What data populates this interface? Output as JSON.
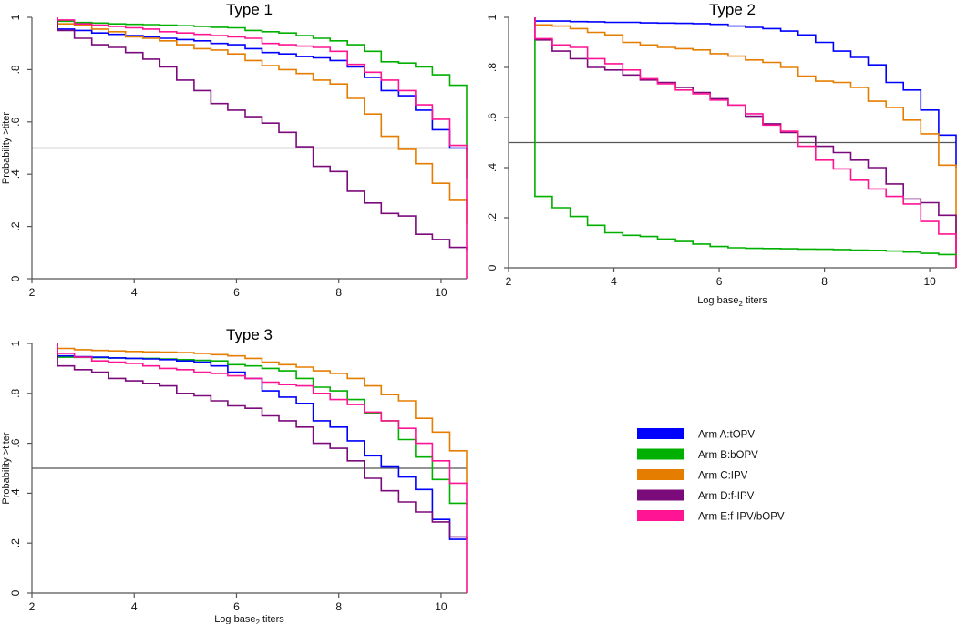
{
  "chart_data": {
    "type": "line",
    "step_x": [
      2.5,
      2.83,
      3.17,
      3.5,
      3.83,
      4.17,
      4.5,
      4.83,
      5.17,
      5.5,
      5.83,
      6.17,
      6.5,
      6.83,
      7.17,
      7.5,
      7.83,
      8.17,
      8.5,
      8.83,
      9.17,
      9.5,
      9.83,
      10.17,
      10.5
    ],
    "reference_line_y": 0.5,
    "legend": [
      {
        "id": "A",
        "label": "Arm A:tOPV",
        "color": "#0000ff"
      },
      {
        "id": "B",
        "label": "Arm B:bOPV",
        "color": "#00b000"
      },
      {
        "id": "C",
        "label": "Arm C:IPV",
        "color": "#e57e00"
      },
      {
        "id": "D",
        "label": "Arm D:f-IPV",
        "color": "#7b0a7b"
      },
      {
        "id": "E",
        "label": "Arm E:f-IPV/bOPV",
        "color": "#ff1493"
      }
    ],
    "panels": [
      {
        "title": "Type 1",
        "ylabel": "Probability >titer",
        "xlabel": "",
        "xlim": [
          2,
          10.5
        ],
        "ylim": [
          0,
          1
        ],
        "xticks": [
          "2",
          "4",
          "6",
          "8",
          "10"
        ],
        "yticks": [
          "0",
          ".2",
          ".4",
          ".6",
          ".8",
          "1"
        ],
        "series": [
          {
            "id": "B",
            "values": [
              0.985,
              0.98,
              0.978,
              0.975,
              0.973,
              0.972,
              0.97,
              0.968,
              0.965,
              0.962,
              0.96,
              0.95,
              0.945,
              0.94,
              0.93,
              0.92,
              0.91,
              0.895,
              0.87,
              0.83,
              0.825,
              0.81,
              0.78,
              0.74,
              0.62
            ],
            "end": 0.38
          },
          {
            "id": "A",
            "values": [
              0.955,
              0.95,
              0.94,
              0.935,
              0.93,
              0.925,
              0.92,
              0.915,
              0.91,
              0.9,
              0.895,
              0.88,
              0.865,
              0.86,
              0.85,
              0.845,
              0.835,
              0.81,
              0.77,
              0.72,
              0.7,
              0.645,
              0.57,
              0.5,
              0.49
            ],
            "end": 0.49
          },
          {
            "id": "C",
            "values": [
              0.975,
              0.97,
              0.955,
              0.945,
              0.925,
              0.92,
              0.91,
              0.895,
              0.88,
              0.875,
              0.86,
              0.835,
              0.815,
              0.8,
              0.785,
              0.76,
              0.745,
              0.69,
              0.63,
              0.545,
              0.495,
              0.44,
              0.365,
              0.3,
              0.215
            ],
            "end": 0.21
          },
          {
            "id": "D",
            "values": [
              0.95,
              0.92,
              0.895,
              0.885,
              0.865,
              0.84,
              0.81,
              0.76,
              0.72,
              0.67,
              0.645,
              0.62,
              0.595,
              0.56,
              0.505,
              0.43,
              0.41,
              0.335,
              0.29,
              0.25,
              0.24,
              0.17,
              0.15,
              0.12,
              0.11
            ],
            "end": 0.11
          },
          {
            "id": "E",
            "values": [
              0.99,
              0.975,
              0.97,
              0.965,
              0.96,
              0.955,
              0.945,
              0.94,
              0.935,
              0.93,
              0.925,
              0.92,
              0.9,
              0.895,
              0.89,
              0.885,
              0.87,
              0.82,
              0.79,
              0.76,
              0.72,
              0.665,
              0.61,
              0.51,
              0.385
            ],
            "end": 0.0
          }
        ]
      },
      {
        "title": "Type 2",
        "ylabel": "",
        "xlabel": "Log base2 titers",
        "xlim": [
          2,
          10.5
        ],
        "ylim": [
          0,
          1
        ],
        "xticks": [
          "2",
          "4",
          "6",
          "8",
          "10"
        ],
        "yticks": [
          "0",
          ".2",
          ".4",
          ".6",
          ".8",
          "1"
        ],
        "series": [
          {
            "id": "A",
            "values": [
              0.985,
              0.985,
              0.983,
              0.982,
              0.98,
              0.98,
              0.978,
              0.977,
              0.976,
              0.975,
              0.972,
              0.965,
              0.96,
              0.955,
              0.945,
              0.93,
              0.9,
              0.865,
              0.84,
              0.81,
              0.74,
              0.71,
              0.63,
              0.53,
              0.52
            ],
            "end": 0.4
          },
          {
            "id": "C",
            "values": [
              0.97,
              0.965,
              0.955,
              0.94,
              0.93,
              0.9,
              0.89,
              0.88,
              0.875,
              0.87,
              0.855,
              0.845,
              0.83,
              0.82,
              0.8,
              0.765,
              0.745,
              0.74,
              0.72,
              0.665,
              0.64,
              0.59,
              0.535,
              0.41,
              0.405
            ],
            "end": 0.0
          },
          {
            "id": "D",
            "values": [
              0.91,
              0.865,
              0.835,
              0.8,
              0.79,
              0.77,
              0.75,
              0.74,
              0.72,
              0.7,
              0.675,
              0.65,
              0.605,
              0.575,
              0.54,
              0.525,
              0.485,
              0.46,
              0.43,
              0.4,
              0.335,
              0.275,
              0.26,
              0.21,
              0.2
            ],
            "end": 0.0
          },
          {
            "id": "E",
            "values": [
              0.915,
              0.89,
              0.88,
              0.835,
              0.815,
              0.79,
              0.755,
              0.735,
              0.71,
              0.695,
              0.67,
              0.65,
              0.615,
              0.57,
              0.545,
              0.485,
              0.43,
              0.395,
              0.35,
              0.315,
              0.285,
              0.255,
              0.185,
              0.135,
              0.13
            ],
            "end": 0.0
          },
          {
            "id": "B",
            "values": [
              0.285,
              0.24,
              0.205,
              0.17,
              0.14,
              0.13,
              0.125,
              0.115,
              0.105,
              0.095,
              0.085,
              0.08,
              0.078,
              0.077,
              0.076,
              0.075,
              0.074,
              0.073,
              0.071,
              0.07,
              0.067,
              0.063,
              0.058,
              0.053,
              0.05
            ],
            "end": 0.05,
            "start": 0.91
          }
        ]
      },
      {
        "title": "Type 3",
        "ylabel": "Probability >titer",
        "xlabel": "Log base2 titers",
        "xlim": [
          2,
          10.5
        ],
        "ylim": [
          0,
          1
        ],
        "xticks": [
          "2",
          "4",
          "6",
          "8",
          "10"
        ],
        "yticks": [
          "0",
          ".2",
          ".4",
          ".6",
          ".8",
          "1"
        ],
        "series": [
          {
            "id": "C",
            "values": [
              0.98,
              0.975,
              0.972,
              0.97,
              0.968,
              0.966,
              0.965,
              0.963,
              0.96,
              0.955,
              0.95,
              0.94,
              0.925,
              0.915,
              0.905,
              0.89,
              0.88,
              0.86,
              0.83,
              0.795,
              0.77,
              0.7,
              0.645,
              0.57,
              0.565
            ],
            "end": 0.44
          },
          {
            "id": "B",
            "values": [
              0.945,
              0.944,
              0.943,
              0.942,
              0.94,
              0.94,
              0.938,
              0.935,
              0.932,
              0.93,
              0.915,
              0.91,
              0.9,
              0.89,
              0.86,
              0.825,
              0.81,
              0.775,
              0.72,
              0.69,
              0.615,
              0.545,
              0.455,
              0.36,
              0.355
            ],
            "end": 0.355
          },
          {
            "id": "A",
            "values": [
              0.95,
              0.947,
              0.945,
              0.942,
              0.94,
              0.938,
              0.935,
              0.93,
              0.925,
              0.91,
              0.885,
              0.86,
              0.81,
              0.785,
              0.76,
              0.69,
              0.665,
              0.61,
              0.55,
              0.505,
              0.465,
              0.415,
              0.295,
              0.215,
              0.215
            ],
            "end": 0.215
          },
          {
            "id": "D",
            "values": [
              0.91,
              0.895,
              0.885,
              0.86,
              0.85,
              0.84,
              0.83,
              0.8,
              0.79,
              0.77,
              0.75,
              0.74,
              0.71,
              0.69,
              0.665,
              0.6,
              0.58,
              0.53,
              0.46,
              0.41,
              0.365,
              0.325,
              0.285,
              0.225,
              0.215
            ],
            "end": 0.215
          },
          {
            "id": "E",
            "values": [
              0.96,
              0.945,
              0.93,
              0.925,
              0.92,
              0.91,
              0.9,
              0.895,
              0.885,
              0.88,
              0.87,
              0.86,
              0.845,
              0.835,
              0.83,
              0.8,
              0.775,
              0.755,
              0.725,
              0.69,
              0.66,
              0.6,
              0.53,
              0.44,
              0.435
            ],
            "end": 0.0
          }
        ]
      }
    ]
  }
}
